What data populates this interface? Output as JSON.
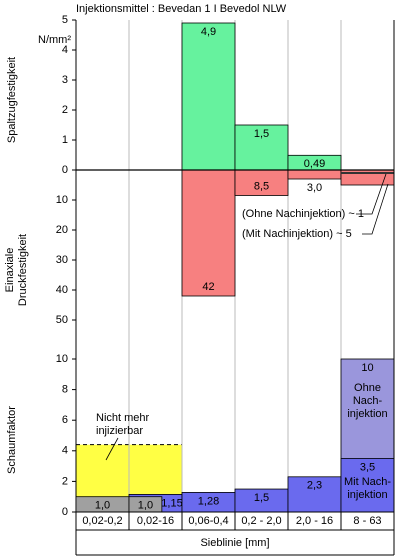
{
  "chart_data": [
    {
      "type": "bar",
      "title": "Injektionsmittel : Bevedan 1 I Bevedol NLW",
      "ylabel": "Spaltzugfestigkeit",
      "unit": "N/mm²",
      "ylim": [
        0,
        5
      ],
      "yticks": [
        0,
        1,
        2,
        3,
        4,
        5
      ],
      "series": [
        {
          "color": "#66f29e",
          "values": [
            null,
            null,
            4.9,
            1.5,
            0.49,
            null
          ],
          "value_labels": [
            null,
            null,
            "4,9",
            "1,5",
            "0,49",
            null
          ]
        }
      ]
    },
    {
      "type": "bar",
      "ylabel": [
        "Einaxiale",
        "Druckfestigkeit"
      ],
      "ylim": [
        0,
        50
      ],
      "yticks": [
        10,
        20,
        30,
        40,
        50
      ],
      "series": [
        {
          "color": "#f78080",
          "values": [
            null,
            null,
            42,
            8.5,
            3.0,
            5
          ],
          "value_labels": [
            null,
            null,
            "42",
            "8,5",
            "3,0",
            null
          ]
        },
        {
          "color": "#333333",
          "values": [
            null,
            null,
            null,
            null,
            null,
            1
          ]
        }
      ],
      "annotations": [
        "(Ohne Nachinjektion) ~ 1",
        "(Mit Nachinjektion) ~ 5"
      ]
    },
    {
      "type": "bar",
      "ylabel": "Schaumfaktor",
      "xlabel": "Sieblinie [mm]",
      "categories": [
        "0,02-0,2",
        "0,02-16",
        "0,06-0,4",
        "0,2 - 2,0",
        "2,0 - 16",
        "8 - 63"
      ],
      "ylim": [
        0,
        10
      ],
      "yticks": [
        0,
        2,
        4,
        6,
        8,
        10
      ],
      "series": [
        {
          "color": "#9a96dc",
          "values": [
            null,
            null,
            null,
            null,
            null,
            10
          ],
          "value_labels": [
            null,
            null,
            null,
            null,
            null,
            "10"
          ]
        },
        {
          "color": "#6a6aee",
          "values": [
            null,
            1.15,
            1.28,
            1.5,
            2.3,
            3.5
          ],
          "value_labels": [
            null,
            "1,15",
            "1,28",
            "1,5",
            "2,3",
            "3,5"
          ]
        },
        {
          "color": "#a0a0a0",
          "values": [
            1.0,
            1.0,
            null,
            null,
            null,
            null
          ],
          "value_labels": [
            "1,0",
            "1,0",
            null,
            null,
            null,
            null
          ]
        }
      ],
      "region": {
        "color": "#ffff44",
        "value": 4.4,
        "label": [
          "Nicht mehr",
          "injizierbar"
        ]
      },
      "annotations": [
        [
          "Ohne",
          "Nach-",
          "injektion"
        ],
        [
          "Mit Nach-",
          "injektion"
        ]
      ]
    }
  ]
}
